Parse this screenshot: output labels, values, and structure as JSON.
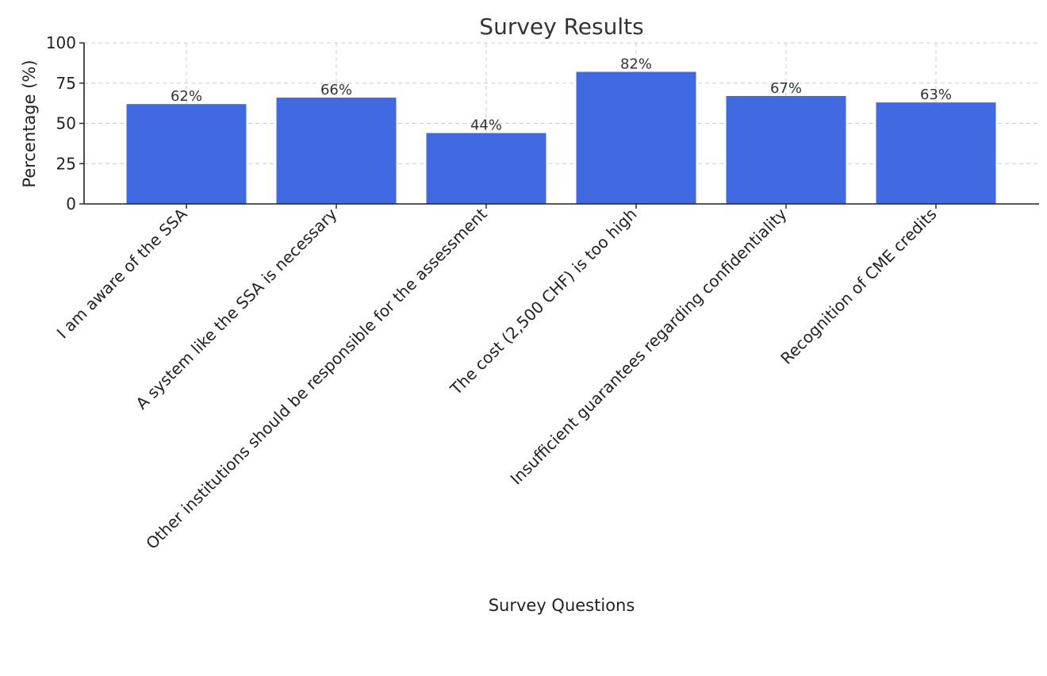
{
  "chart_data": {
    "type": "bar",
    "title": "Survey Results",
    "xlabel": "Survey Questions",
    "ylabel": "Percentage (%)",
    "ylim": [
      0,
      100
    ],
    "yticks": [
      0,
      25,
      50,
      75,
      100
    ],
    "grid": true,
    "bar_color": "#4169e1",
    "categories": [
      "I am aware of the SSA",
      "A system like the SSA is necessary",
      "Other institutions should be responsible for the assessment",
      "The cost (2,500 CHF) is too high",
      "Insufficient guarantees regarding confidentiality",
      "Recognition of CME credits"
    ],
    "values": [
      62,
      66,
      44,
      82,
      67,
      63
    ],
    "value_labels": [
      "62%",
      "66%",
      "44%",
      "82%",
      "67%",
      "63%"
    ]
  }
}
